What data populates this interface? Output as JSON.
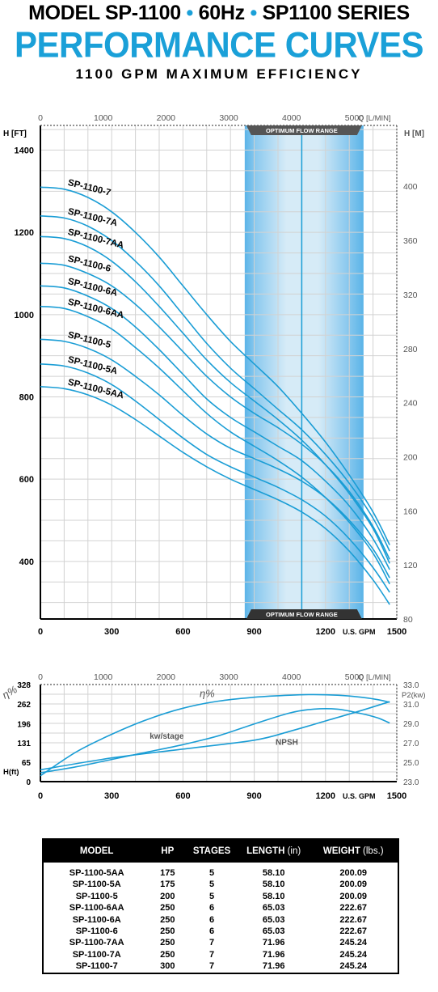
{
  "header": {
    "line1_a": "MODEL SP-1100",
    "line1_b": "60Hz",
    "line1_c": "SP1100 SERIES",
    "line1_sep": "•",
    "line2": "PERFORMANCE CURVES",
    "line3": "1100 GPM MAXIMUM EFFICIENCY"
  },
  "colors": {
    "curve": "#1a9dd5",
    "band_light": "#d6ebf7",
    "band_mid": "#8fcbef",
    "band_dark": "#5bb4e8",
    "grid": "#d2d2d2",
    "dark_label": "#555555",
    "axis": "#000000"
  },
  "chart_data": [
    {
      "type": "line",
      "title": "",
      "xlabel": "U.S. GPM",
      "xlabel_top": "Q [L/MIN]",
      "ylabel_left": "H [FT]",
      "ylabel_right": "H [M]",
      "xlim": [
        0,
        1500
      ],
      "ylim": [
        260,
        1460
      ],
      "ylim_right": [
        80,
        445
      ],
      "xticks": [
        "0",
        "300",
        "600",
        "900",
        "1200",
        "1500"
      ],
      "xticks_top": [
        "0",
        "1000",
        "2000",
        "3000",
        "4000",
        "5000"
      ],
      "yticks_left": [
        "400",
        "600",
        "800",
        "1000",
        "1200",
        "1400"
      ],
      "yticks_right": [
        "80",
        "120",
        "160",
        "200",
        "240",
        "280",
        "320",
        "360",
        "400"
      ],
      "grid": true,
      "optimum_flow_range": {
        "label": "OPTIMUM FLOW RANGE",
        "from": 860,
        "to": 1360,
        "center": 1100
      },
      "series": [
        {
          "name": "SP-1100-7",
          "values": [
            [
              0,
              1310
            ],
            [
              100,
              1305
            ],
            [
              200,
              1285
            ],
            [
              300,
              1250
            ],
            [
              400,
              1200
            ],
            [
              500,
              1140
            ],
            [
              600,
              1070
            ],
            [
              700,
              1000
            ],
            [
              800,
              935
            ],
            [
              900,
              880
            ],
            [
              1000,
              825
            ],
            [
              1100,
              760
            ],
            [
              1200,
              690
            ],
            [
              1300,
              610
            ],
            [
              1400,
              520
            ],
            [
              1470,
              440
            ]
          ]
        },
        {
          "name": "SP-1100-7A",
          "values": [
            [
              0,
              1240
            ],
            [
              100,
              1235
            ],
            [
              200,
              1215
            ],
            [
              300,
              1180
            ],
            [
              400,
              1130
            ],
            [
              500,
              1070
            ],
            [
              600,
              1000
            ],
            [
              700,
              930
            ],
            [
              800,
              870
            ],
            [
              900,
              820
            ],
            [
              1000,
              770
            ],
            [
              1100,
              720
            ],
            [
              1200,
              660
            ],
            [
              1300,
              590
            ],
            [
              1400,
              505
            ],
            [
              1470,
              425
            ]
          ]
        },
        {
          "name": "SP-1100-7AA",
          "values": [
            [
              0,
              1190
            ],
            [
              100,
              1185
            ],
            [
              200,
              1165
            ],
            [
              300,
              1130
            ],
            [
              400,
              1080
            ],
            [
              500,
              1020
            ],
            [
              600,
              955
            ],
            [
              700,
              890
            ],
            [
              800,
              835
            ],
            [
              900,
              790
            ],
            [
              1000,
              745
            ],
            [
              1100,
              695
            ],
            [
              1200,
              635
            ],
            [
              1300,
              565
            ],
            [
              1400,
              480
            ],
            [
              1470,
              395
            ]
          ]
        },
        {
          "name": "SP-1100-6",
          "values": [
            [
              0,
              1125
            ],
            [
              100,
              1120
            ],
            [
              200,
              1100
            ],
            [
              300,
              1070
            ],
            [
              400,
              1025
            ],
            [
              500,
              970
            ],
            [
              600,
              910
            ],
            [
              700,
              850
            ],
            [
              800,
              800
            ],
            [
              900,
              760
            ],
            [
              1000,
              725
            ],
            [
              1100,
              685
            ],
            [
              1200,
              635
            ],
            [
              1300,
              570
            ],
            [
              1400,
              485
            ],
            [
              1470,
              405
            ]
          ]
        },
        {
          "name": "SP-1100-6A",
          "values": [
            [
              0,
              1070
            ],
            [
              100,
              1065
            ],
            [
              200,
              1045
            ],
            [
              300,
              1015
            ],
            [
              400,
              970
            ],
            [
              500,
              915
            ],
            [
              600,
              855
            ],
            [
              700,
              795
            ],
            [
              800,
              750
            ],
            [
              900,
              715
            ],
            [
              1000,
              680
            ],
            [
              1100,
              645
            ],
            [
              1200,
              595
            ],
            [
              1300,
              535
            ],
            [
              1400,
              455
            ],
            [
              1470,
              380
            ]
          ]
        },
        {
          "name": "SP-1100-6AA",
          "values": [
            [
              0,
              1020
            ],
            [
              100,
              1015
            ],
            [
              200,
              995
            ],
            [
              300,
              965
            ],
            [
              400,
              920
            ],
            [
              500,
              870
            ],
            [
              600,
              815
            ],
            [
              700,
              760
            ],
            [
              800,
              715
            ],
            [
              900,
              680
            ],
            [
              1000,
              645
            ],
            [
              1100,
              605
            ],
            [
              1200,
              555
            ],
            [
              1300,
              495
            ],
            [
              1400,
              420
            ],
            [
              1470,
              345
            ]
          ]
        },
        {
          "name": "SP-1100-5",
          "values": [
            [
              0,
              940
            ],
            [
              100,
              935
            ],
            [
              200,
              918
            ],
            [
              300,
              890
            ],
            [
              400,
              850
            ],
            [
              500,
              805
            ],
            [
              600,
              755
            ],
            [
              700,
              710
            ],
            [
              800,
              675
            ],
            [
              900,
              650
            ],
            [
              1000,
              625
            ],
            [
              1100,
              595
            ],
            [
              1200,
              555
            ],
            [
              1300,
              500
            ],
            [
              1400,
              430
            ],
            [
              1470,
              360
            ]
          ]
        },
        {
          "name": "SP-1100-5A",
          "values": [
            [
              0,
              880
            ],
            [
              100,
              875
            ],
            [
              200,
              858
            ],
            [
              300,
              830
            ],
            [
              400,
              790
            ],
            [
              500,
              745
            ],
            [
              600,
              700
            ],
            [
              700,
              660
            ],
            [
              800,
              630
            ],
            [
              900,
              605
            ],
            [
              1000,
              580
            ],
            [
              1100,
              550
            ],
            [
              1200,
              510
            ],
            [
              1300,
              455
            ],
            [
              1400,
              385
            ],
            [
              1470,
              325
            ]
          ]
        },
        {
          "name": "SP-1100-5AA",
          "values": [
            [
              0,
              825
            ],
            [
              100,
              820
            ],
            [
              200,
              805
            ],
            [
              300,
              780
            ],
            [
              400,
              745
            ],
            [
              500,
              705
            ],
            [
              600,
              665
            ],
            [
              700,
              630
            ],
            [
              800,
              600
            ],
            [
              900,
              575
            ],
            [
              1000,
              550
            ],
            [
              1100,
              520
            ],
            [
              1200,
              480
            ],
            [
              1300,
              425
            ],
            [
              1400,
              355
            ],
            [
              1470,
              295
            ]
          ]
        }
      ]
    },
    {
      "type": "line",
      "title": "",
      "xlabel": "U.S. GPM",
      "xlabel_top": "Q [L/MIN]",
      "ylabel_left_efficiency": "η%",
      "ylabel_left": "H(ft)",
      "ylabel_right": "P2(kw)",
      "xlim": [
        0,
        1500
      ],
      "ylim": [
        0,
        328
      ],
      "ylim_right": [
        23.0,
        33.0
      ],
      "xticks": [
        "0",
        "300",
        "600",
        "900",
        "1200",
        "1500"
      ],
      "xticks_top": [
        "0",
        "1000",
        "2000",
        "3000",
        "4000",
        "5000"
      ],
      "yticks_left": [
        "0",
        "65",
        "131",
        "196",
        "262",
        "328"
      ],
      "yticks_right": [
        "23.0",
        "25.0",
        "27.0",
        "29.0",
        "31.0",
        "33.0"
      ],
      "grid": true,
      "annotations": [
        {
          "text": "η%",
          "x": 670,
          "y": 285
        },
        {
          "text": "kw/stage",
          "x": 460,
          "y": 145
        },
        {
          "text": "NPSH",
          "x": 990,
          "y": 125
        }
      ],
      "series": [
        {
          "name": "η%",
          "values": [
            [
              0,
              20
            ],
            [
              150,
              100
            ],
            [
              300,
              160
            ],
            [
              450,
              210
            ],
            [
              600,
              248
            ],
            [
              750,
              272
            ],
            [
              900,
              285
            ],
            [
              1050,
              292
            ],
            [
              1150,
              294
            ],
            [
              1250,
              292
            ],
            [
              1350,
              285
            ],
            [
              1420,
              277
            ],
            [
              1470,
              268
            ]
          ]
        },
        {
          "name": "kw/stage",
          "values": [
            [
              0,
              30
            ],
            [
              150,
              50
            ],
            [
              300,
              75
            ],
            [
              450,
              100
            ],
            [
              600,
              125
            ],
            [
              750,
              155
            ],
            [
              900,
              195
            ],
            [
              1050,
              232
            ],
            [
              1150,
              245
            ],
            [
              1250,
              245
            ],
            [
              1350,
              230
            ],
            [
              1420,
              215
            ],
            [
              1470,
              198
            ]
          ]
        },
        {
          "name": "NPSH",
          "values": [
            [
              0,
              40
            ],
            [
              300,
              80
            ],
            [
              600,
              110
            ],
            [
              900,
              140
            ],
            [
              1050,
              170
            ],
            [
              1200,
              205
            ],
            [
              1350,
              240
            ],
            [
              1470,
              270
            ]
          ]
        }
      ]
    }
  ],
  "spec_table": {
    "headers": {
      "model": "MODEL",
      "hp": "HP",
      "stages": "STAGES",
      "length": "LENGTH",
      "length_unit": "(in)",
      "weight": "WEIGHT",
      "weight_unit": "(lbs.)"
    },
    "rows": [
      {
        "model": "SP-1100-5AA",
        "hp": "175",
        "stages": "5",
        "length": "58.10",
        "weight": "200.09"
      },
      {
        "model": "SP-1100-5A",
        "hp": "175",
        "stages": "5",
        "length": "58.10",
        "weight": "200.09"
      },
      {
        "model": "SP-1100-5",
        "hp": "200",
        "stages": "5",
        "length": "58.10",
        "weight": "200.09"
      },
      {
        "model": "SP-1100-6AA",
        "hp": "250",
        "stages": "6",
        "length": "65.03",
        "weight": "222.67"
      },
      {
        "model": "SP-1100-6A",
        "hp": "250",
        "stages": "6",
        "length": "65.03",
        "weight": "222.67"
      },
      {
        "model": "SP-1100-6",
        "hp": "250",
        "stages": "6",
        "length": "65.03",
        "weight": "222.67"
      },
      {
        "model": "SP-1100-7AA",
        "hp": "250",
        "stages": "7",
        "length": "71.96",
        "weight": "245.24"
      },
      {
        "model": "SP-1100-7A",
        "hp": "250",
        "stages": "7",
        "length": "71.96",
        "weight": "245.24"
      },
      {
        "model": "SP-1100-7",
        "hp": "300",
        "stages": "7",
        "length": "71.96",
        "weight": "245.24"
      }
    ]
  }
}
